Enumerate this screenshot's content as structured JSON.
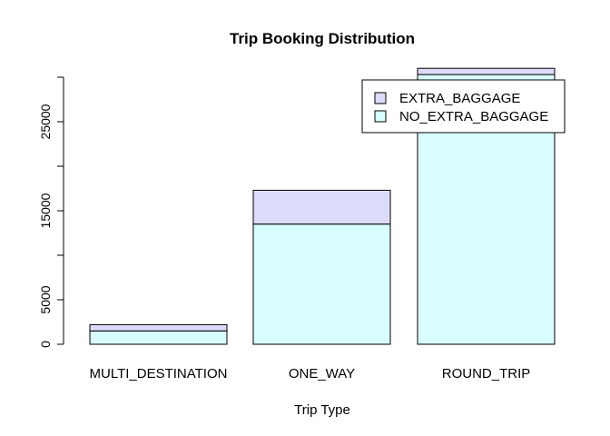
{
  "chart_data": {
    "type": "bar",
    "stacked": true,
    "title": "Trip Booking Distribution",
    "xlabel": "Trip Type",
    "ylabel": "",
    "categories": [
      "MULTI_DESTINATION",
      "ONE_WAY",
      "ROUND_TRIP"
    ],
    "series": [
      {
        "name": "NO_EXTRA_BAGGAGE",
        "values": [
          1500,
          13500,
          30300
        ],
        "color": "#d9fefe"
      },
      {
        "name": "EXTRA_BAGGAGE",
        "values": [
          700,
          3800,
          700
        ],
        "color": "#dcdcfa"
      }
    ],
    "ylim": [
      0,
      30000
    ],
    "yticks": [
      0,
      5000,
      15000,
      25000
    ],
    "legend_position": "top-right",
    "grid": false
  }
}
